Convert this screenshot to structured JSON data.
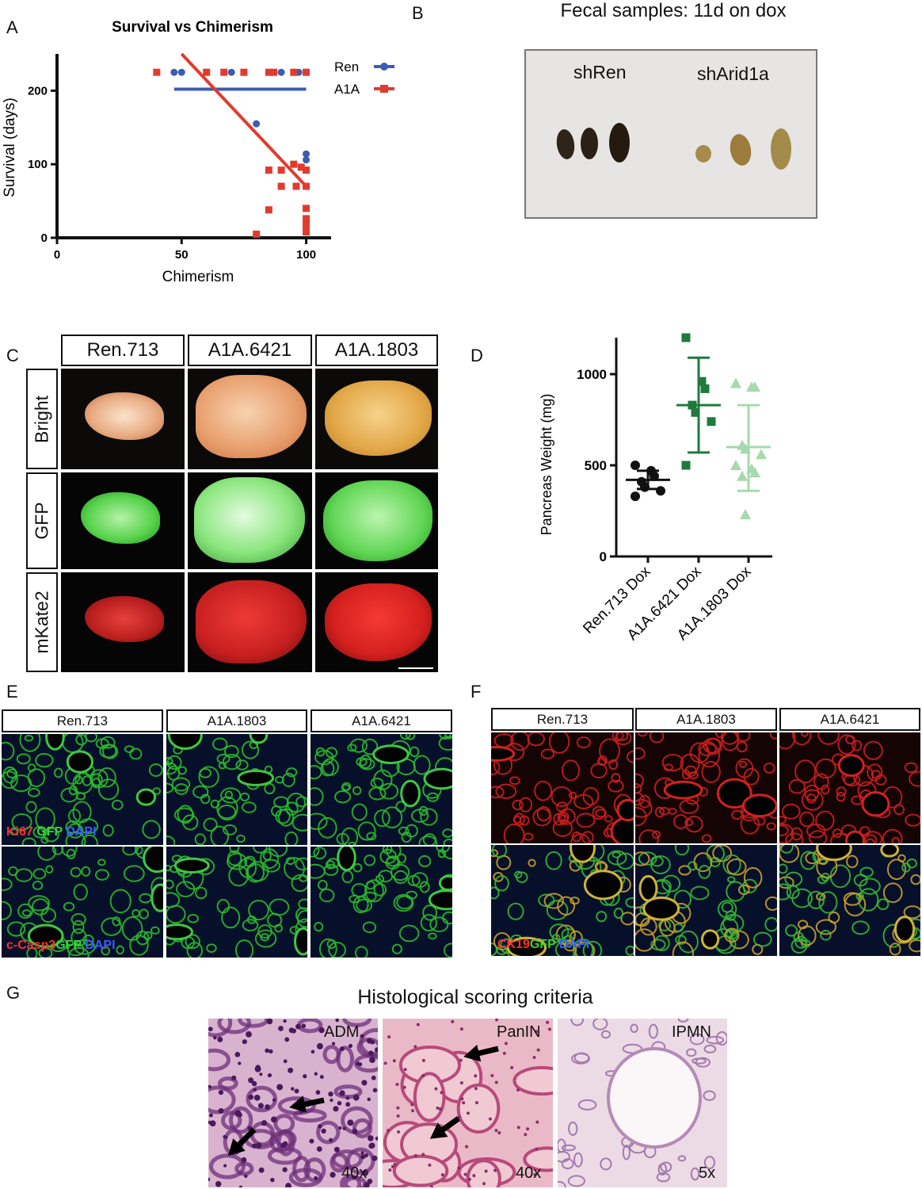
{
  "panels": {
    "A": "A",
    "B": "B",
    "C": "C",
    "D": "D",
    "E": "E",
    "F": "F",
    "G": "G"
  },
  "panelA": {
    "chart_data": {
      "type": "scatter",
      "title": "Survival vs Chimerism",
      "xlabel": "Chimerism",
      "ylabel": "Survival (days)",
      "xlim": [
        0,
        110
      ],
      "ylim": [
        0,
        250
      ],
      "xticks": [
        "0",
        "50",
        "100"
      ],
      "yticks": [
        "0",
        "100",
        "200"
      ],
      "legend_position": "top-right",
      "series": [
        {
          "name": "Ren",
          "color": "#3b5cb0",
          "points": [
            [
              47,
              225
            ],
            [
              50,
              225
            ],
            [
              70,
              225
            ],
            [
              90,
              225
            ],
            [
              97,
              225
            ],
            [
              100,
              225
            ],
            [
              80,
              155
            ],
            [
              100,
              114
            ],
            [
              100,
              106
            ]
          ],
          "fit": [
            [
              47,
              202
            ],
            [
              100,
              202
            ]
          ]
        },
        {
          "name": "A1A",
          "color": "#e23b2e",
          "points": [
            [
              40,
              225
            ],
            [
              60,
              225
            ],
            [
              67,
              225
            ],
            [
              75,
              225
            ],
            [
              85,
              225
            ],
            [
              87,
              225
            ],
            [
              95,
              225
            ],
            [
              100,
              225
            ],
            [
              85,
              92
            ],
            [
              90,
              92
            ],
            [
              95,
              100
            ],
            [
              98,
              96
            ],
            [
              100,
              92
            ],
            [
              90,
              70
            ],
            [
              96,
              70
            ],
            [
              100,
              70
            ],
            [
              85,
              38
            ],
            [
              100,
              40
            ],
            [
              100,
              26
            ],
            [
              100,
              20
            ],
            [
              100,
              12
            ],
            [
              100,
              8
            ],
            [
              80,
              5
            ]
          ],
          "fit": [
            [
              50,
              250
            ],
            [
              100,
              70
            ]
          ]
        }
      ]
    }
  },
  "panelB": {
    "title": "Fecal samples: 11d on dox",
    "label_left": "shRen",
    "label_right": "shArid1a"
  },
  "panelC": {
    "columns": [
      "Ren.713",
      "A1A.6421",
      "A1A.1803"
    ],
    "rows": [
      "Bright",
      "GFP",
      "mKate2"
    ]
  },
  "panelD": {
    "chart_data": {
      "type": "scatter",
      "ylabel": "Pancreas Weight (mg)",
      "ylim": [
        0,
        1200
      ],
      "yticks": [
        "0",
        "500",
        "1000"
      ],
      "categories": [
        "Ren.713 Dox",
        "A1A.6421 Dox",
        "A1A.1803 Dox"
      ],
      "series": [
        {
          "name": "Ren.713 Dox",
          "color": "#111111",
          "marker": "circle",
          "mean": 420,
          "sd_low": 370,
          "sd_high": 470,
          "values": [
            500,
            470,
            440,
            410,
            380,
            360,
            330
          ]
        },
        {
          "name": "A1A.6421 Dox",
          "color": "#1f7a3c",
          "marker": "square",
          "mean": 830,
          "sd_low": 570,
          "sd_high": 1090,
          "values": [
            1200,
            960,
            920,
            830,
            790,
            740,
            500
          ]
        },
        {
          "name": "A1A.1803 Dox",
          "color": "#a6d9ad",
          "marker": "triangle",
          "mean": 600,
          "sd_low": 360,
          "sd_high": 830,
          "values": [
            950,
            930,
            930,
            610,
            590,
            560,
            500,
            480,
            460,
            440,
            230
          ]
        }
      ]
    }
  },
  "panelE": {
    "columns": [
      "Ren.713",
      "A1A.1803",
      "A1A.6421"
    ],
    "row1_label": {
      "a": "Ki67",
      "b": "GFP",
      "c": "DAPI"
    },
    "row2_label": {
      "a": "c-Casp3",
      "b": "GFP",
      "c": "DAPI"
    }
  },
  "panelF": {
    "columns": [
      "Ren.713",
      "A1A.1803",
      "A1A.6421"
    ],
    "row2_label": {
      "a": "CK19",
      "b": "GFP",
      "c": "DAPI"
    }
  },
  "panelG": {
    "title": "Histological scoring criteria",
    "images": [
      {
        "label": "ADM",
        "mag": "40x"
      },
      {
        "label": "PanIN",
        "mag": "40x"
      },
      {
        "label": "IPMN",
        "mag": "5x"
      }
    ]
  }
}
